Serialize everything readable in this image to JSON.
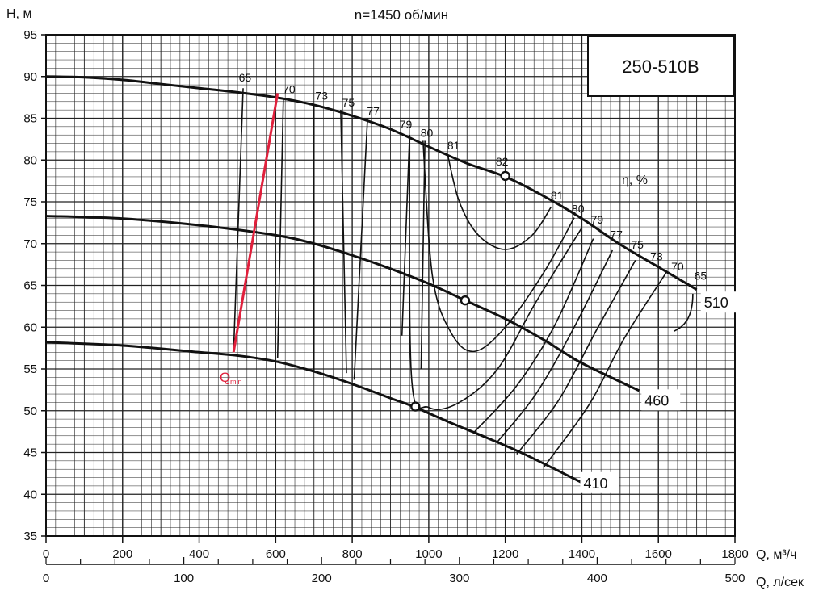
{
  "chart_data": {
    "type": "line",
    "title": "n=1450 об/мин",
    "model_label": "250-510B",
    "ylabel": "H, м",
    "xlabel": "Q, м³/ч",
    "x2label": "Q, л/сек",
    "ylim": [
      35,
      95
    ],
    "xlim": [
      0,
      1800
    ],
    "x2lim": [
      0,
      500
    ],
    "y_ticks": [
      "35",
      "40",
      "45",
      "50",
      "55",
      "60",
      "65",
      "70",
      "75",
      "80",
      "85",
      "90",
      "95"
    ],
    "x_ticks": [
      "0",
      "200",
      "400",
      "600",
      "800",
      "1000",
      "1200",
      "1400",
      "1600",
      "1800"
    ],
    "x2_ticks": [
      "0",
      "100",
      "200",
      "300",
      "400",
      "500"
    ],
    "grid": true,
    "efficiency_label": "η, %",
    "qmin_label": "Q",
    "qmin_sub": "min",
    "series": [
      {
        "name": "510",
        "x": [
          0,
          100,
          200,
          300,
          400,
          500,
          600,
          700,
          800,
          900,
          1000,
          1100,
          1200,
          1300,
          1400,
          1500,
          1600,
          1700
        ],
        "y": [
          90,
          89.9,
          89.6,
          89.1,
          88.6,
          88.1,
          87.5,
          86.6,
          85.3,
          83.7,
          81.6,
          79.6,
          78,
          75.7,
          73,
          69.9,
          67.2,
          64.5
        ]
      },
      {
        "name": "460",
        "x": [
          0,
          200,
          400,
          600,
          700,
          800,
          900,
          1000,
          1100,
          1200,
          1300,
          1400,
          1550
        ],
        "y": [
          73.3,
          73,
          72.2,
          71,
          70,
          68.6,
          67,
          65.2,
          63.1,
          61,
          58.5,
          55.7,
          52.4
        ]
      },
      {
        "name": "410",
        "x": [
          0,
          200,
          400,
          500,
          600,
          700,
          800,
          900,
          960,
          1050,
          1150,
          1250,
          1400
        ],
        "y": [
          58.2,
          57.8,
          57,
          56.6,
          55.9,
          54.7,
          53.2,
          51.5,
          50.5,
          48.7,
          46.8,
          44.8,
          41.4
        ]
      }
    ],
    "bep_points": [
      {
        "curve": "510",
        "x": 1200,
        "y": 78.1,
        "label": "82"
      },
      {
        "curve": "460",
        "x": 1095,
        "y": 63.2
      },
      {
        "curve": "410",
        "x": 965,
        "y": 50.5
      }
    ],
    "qmin_line": {
      "x": [
        490,
        605
      ],
      "y": [
        57,
        88
      ]
    },
    "efficiency_labels_left": [
      "65",
      "70",
      "73",
      "75",
      "77",
      "79",
      "80",
      "81"
    ],
    "efficiency_labels_right": [
      "81",
      "80",
      "79",
      "77",
      "75",
      "73",
      "70",
      "65"
    ],
    "efficiency_lines_left": [
      {
        "label": "65",
        "x": [
          490,
          515
        ],
        "y": [
          57,
          88.6
        ]
      },
      {
        "label": "70",
        "x": [
          605,
          620
        ],
        "y": [
          56.3,
          87.2
        ]
      },
      {
        "label": "73",
        "x": [
          700,
          700
        ],
        "y": [
          54.7,
          86.5
        ]
      },
      {
        "label": "75",
        "x": [
          785,
          770
        ],
        "y": [
          54.5,
          86.0
        ]
      },
      {
        "label": "77",
        "x": [
          805,
          840
        ],
        "y": [
          53.7,
          85.0
        ]
      },
      {
        "label": "79",
        "x": [
          930,
          950
        ],
        "y": [
          59,
          83.0
        ]
      },
      {
        "label": "80",
        "x": [
          980,
          990
        ],
        "y": [
          55,
          82.3
        ]
      }
    ],
    "efficiency_loops": [
      {
        "label": "81",
        "x": [
          1050,
          1080,
          1130,
          1200,
          1270,
          1320
        ],
        "y": [
          80.5,
          75,
          71,
          69.3,
          71,
          74.4
        ]
      },
      {
        "label": "80",
        "x": [
          985,
          1010,
          1060,
          1120,
          1200,
          1300,
          1380
        ],
        "y": [
          82.3,
          66,
          59.2,
          57.1,
          60,
          66.5,
          73.1
        ]
      },
      {
        "label": "79",
        "x": [
          950,
          955,
          1000,
          1080,
          1180,
          1280,
          1400
        ],
        "y": [
          83,
          54,
          50.4,
          51,
          55,
          63,
          71.9
        ]
      },
      {
        "label": "77",
        "x": [
          1120,
          1230,
          1330,
          1430
        ],
        "y": [
          47.5,
          53,
          60.3,
          70.6
        ]
      },
      {
        "label": "75",
        "x": [
          1180,
          1280,
          1380,
          1480
        ],
        "y": [
          46.3,
          52,
          60,
          69.2
        ]
      },
      {
        "label": "73",
        "x": [
          1230,
          1340,
          1440,
          1540
        ],
        "y": [
          44.8,
          51.3,
          59.8,
          68.0
        ]
      },
      {
        "label": "70",
        "x": [
          1300,
          1420,
          1510,
          1620
        ],
        "y": [
          43.2,
          50.8,
          58.6,
          66.5
        ]
      }
    ]
  }
}
